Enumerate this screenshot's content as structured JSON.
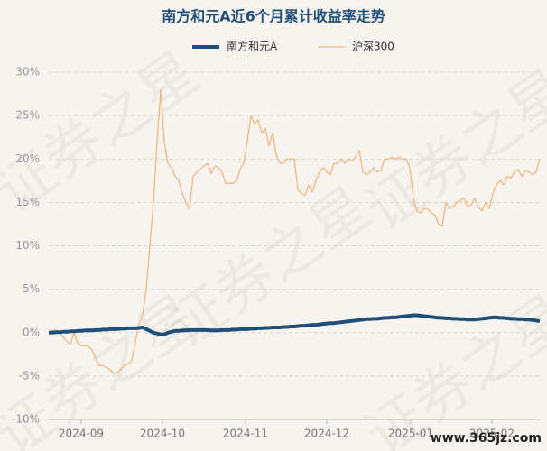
{
  "chart_data": {
    "type": "line",
    "title": "南方和元A近6个月累计收益率走势",
    "watermark": "证券之星",
    "site_watermark": "www.365jz.com",
    "xlim": [
      0,
      136
    ],
    "xticks": [
      {
        "value": 9,
        "label": "2024-09"
      },
      {
        "value": 31.5,
        "label": "2024-10"
      },
      {
        "value": 54.5,
        "label": "2024-11"
      },
      {
        "value": 77,
        "label": "2024-12"
      },
      {
        "value": 100.25,
        "label": "2025-01"
      },
      {
        "value": 122.75,
        "label": "2025-02"
      }
    ],
    "ylim": [
      -10,
      30
    ],
    "yticks": [
      {
        "value": -10,
        "label": "-10%"
      },
      {
        "value": -5,
        "label": "-5%"
      },
      {
        "value": 0,
        "label": "0%"
      },
      {
        "value": 5,
        "label": "5%"
      },
      {
        "value": 10,
        "label": "10%"
      },
      {
        "value": 15,
        "label": "15%"
      },
      {
        "value": 20,
        "label": "20%"
      },
      {
        "value": 25,
        "label": "25%"
      },
      {
        "value": 30,
        "label": "30%"
      }
    ],
    "grid": true,
    "series": [
      {
        "name": "南方和元A",
        "color": "#1f4e79",
        "width": 4,
        "values": [
          0,
          0,
          0.05,
          0.05,
          0.1,
          0.1,
          0.15,
          0.15,
          0.2,
          0.2,
          0.25,
          0.25,
          0.25,
          0.3,
          0.3,
          0.35,
          0.35,
          0.4,
          0.4,
          0.4,
          0.45,
          0.45,
          0.5,
          0.5,
          0.5,
          0.55,
          0.6,
          0.4,
          0.2,
          0,
          -0.1,
          -0.2,
          -0.2,
          0,
          0.1,
          0.2,
          0.2,
          0.25,
          0.25,
          0.3,
          0.3,
          0.3,
          0.3,
          0.3,
          0.3,
          0.25,
          0.25,
          0.25,
          0.3,
          0.3,
          0.3,
          0.35,
          0.35,
          0.4,
          0.4,
          0.4,
          0.45,
          0.45,
          0.5,
          0.5,
          0.55,
          0.55,
          0.6,
          0.6,
          0.6,
          0.65,
          0.65,
          0.7,
          0.7,
          0.75,
          0.8,
          0.8,
          0.85,
          0.9,
          0.9,
          0.95,
          1.0,
          1.05,
          1.1,
          1.1,
          1.15,
          1.2,
          1.25,
          1.3,
          1.35,
          1.4,
          1.45,
          1.5,
          1.55,
          1.55,
          1.6,
          1.6,
          1.65,
          1.7,
          1.7,
          1.75,
          1.75,
          1.8,
          1.85,
          1.9,
          1.95,
          2.0,
          2.0,
          1.95,
          1.9,
          1.85,
          1.8,
          1.75,
          1.7,
          1.7,
          1.65,
          1.65,
          1.6,
          1.6,
          1.55,
          1.55,
          1.5,
          1.5,
          1.5,
          1.55,
          1.6,
          1.65,
          1.7,
          1.75,
          1.75,
          1.7,
          1.7,
          1.65,
          1.6,
          1.6,
          1.55,
          1.55,
          1.5,
          1.5,
          1.45,
          1.4,
          1.3
        ]
      },
      {
        "name": "沪深300",
        "color": "#f2b77c",
        "width": 1.3,
        "values": [
          0,
          0.3,
          0.3,
          0,
          -0.5,
          -1,
          -1.3,
          0,
          -1.2,
          -1.5,
          -1.5,
          -1.6,
          -2,
          -3,
          -3.8,
          -3.8,
          -4,
          -4.3,
          -4.7,
          -4.6,
          -4.2,
          -3.8,
          -3.6,
          -3.3,
          -1,
          1,
          2,
          5,
          10,
          15,
          22,
          28,
          22,
          19.5,
          19,
          18,
          17.5,
          16,
          15,
          14.2,
          18,
          18.5,
          18.8,
          19.2,
          19.5,
          18.3,
          19.2,
          19,
          18.5,
          17.2,
          17.2,
          17.2,
          17.5,
          18.8,
          19.5,
          22,
          25,
          24,
          24.5,
          23,
          23.5,
          21.5,
          23,
          20.5,
          19.5,
          19.5,
          20,
          20,
          20,
          16.5,
          16,
          15.8,
          17,
          16.2,
          17.5,
          18.5,
          19,
          18.5,
          18.2,
          19.5,
          19.5,
          20,
          19.5,
          20,
          19.8,
          20.2,
          21,
          18.5,
          18.2,
          18.5,
          19,
          18.5,
          18.7,
          20,
          20,
          20.2,
          20,
          20.2,
          20,
          20,
          19,
          15.5,
          14,
          13.8,
          14.3,
          14.2,
          13.8,
          13.5,
          12.5,
          12.3,
          15,
          14.3,
          14.5,
          15,
          15.2,
          15.5,
          14.5,
          14.7,
          15.5,
          14.5,
          14,
          15,
          14.3,
          16,
          17,
          17.5,
          17,
          18,
          17.8,
          18.5,
          18.8,
          18,
          18.7,
          18.5,
          18.2,
          18.5,
          20
        ]
      }
    ]
  }
}
